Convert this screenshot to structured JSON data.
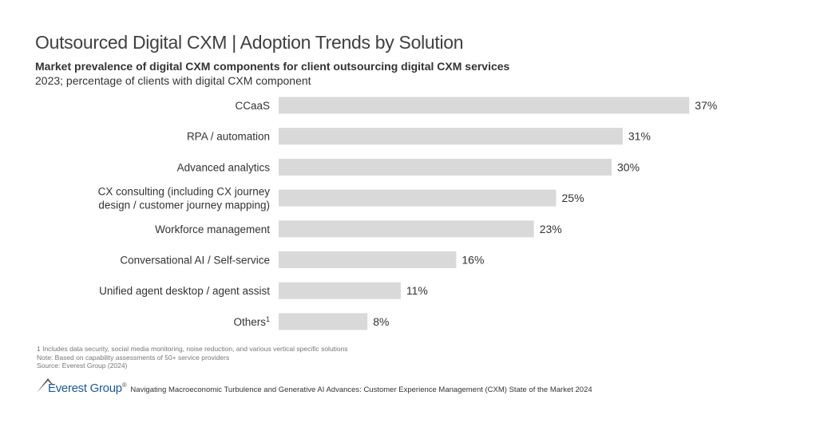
{
  "header": {
    "title": "Outsourced Digital CXM | Adoption Trends by Solution",
    "subtitle": "Market prevalence of digital CXM components for client outsourcing digital CXM services",
    "description": "2023; percentage of clients with digital CXM component"
  },
  "chart_data": {
    "type": "bar",
    "orientation": "horizontal",
    "categories": [
      [
        "CCaaS"
      ],
      [
        "RPA / automation"
      ],
      [
        "Advanced analytics"
      ],
      [
        "CX consulting (including CX journey",
        "design / customer journey mapping)"
      ],
      [
        "Workforce management"
      ],
      [
        "Conversational AI / Self-service"
      ],
      [
        "Unified agent desktop / agent assist"
      ],
      [
        "Others"
      ]
    ],
    "category_superscripts": [
      "",
      "",
      "",
      "",
      "",
      "",
      "",
      "1"
    ],
    "values": [
      37,
      31,
      30,
      25,
      23,
      16,
      11,
      8
    ],
    "data_labels": [
      "37%",
      "31%",
      "30%",
      "25%",
      "23%",
      "16%",
      "11%",
      "8%"
    ],
    "unit": "%",
    "bar_color": "#d9d9d9",
    "grid": false,
    "legend": "none"
  },
  "notes": [
    "1 Includes data security, social media monitoring, noise reduction, and various vertical specific solutions",
    "Note: Based on capability assessments of 50+ service providers",
    "Source: Everest Group (2024)"
  ],
  "footer": {
    "logo": "Everest Group",
    "logo_mark": "®",
    "report": "Navigating Macroeconomic Turbulence and Generative AI Advances: Customer Experience Management (CXM) State of the Market 2024"
  }
}
